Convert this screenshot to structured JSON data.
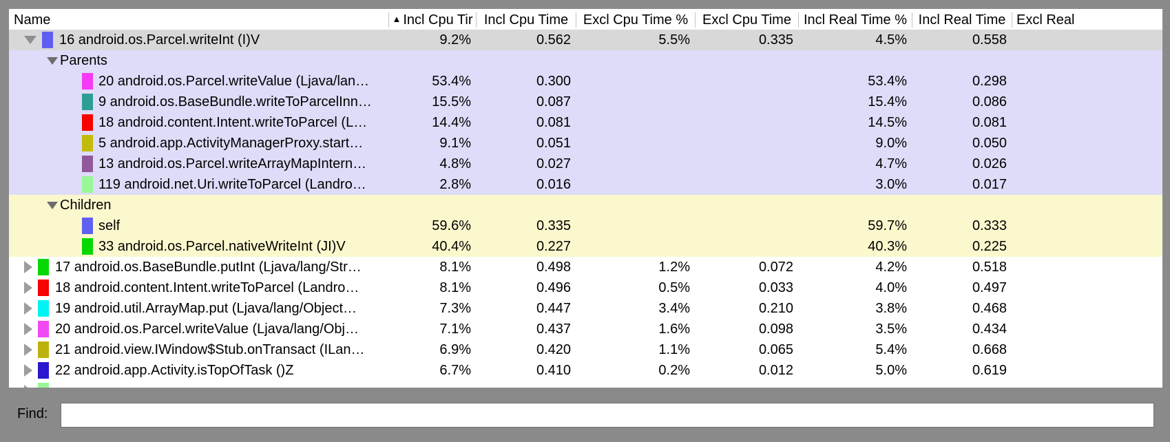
{
  "window": {
    "frame_color": "#8a8a8a"
  },
  "table": {
    "columns": [
      {
        "id": "name",
        "label": "Name",
        "align": "left"
      },
      {
        "id": "incl_cpu_pct",
        "label": "Incl Cpu Tir",
        "sorted": "asc"
      },
      {
        "id": "incl_cpu_time",
        "label": "Incl Cpu Time"
      },
      {
        "id": "excl_cpu_pct",
        "label": "Excl Cpu Time %"
      },
      {
        "id": "excl_cpu_time",
        "label": "Excl Cpu Time"
      },
      {
        "id": "incl_real_pct",
        "label": "Incl Real Time %"
      },
      {
        "id": "incl_real_time",
        "label": "Incl Real Time"
      },
      {
        "id": "excl_real",
        "label": "Excl Real"
      }
    ],
    "rows": [
      {
        "kind": "toplevel",
        "expanded": true,
        "selected": true,
        "chip": "#5e5ef2",
        "label": "16 android.os.Parcel.writeInt (I)V",
        "values": [
          "9.2%",
          "0.562",
          "5.5%",
          "0.335",
          "4.5%",
          "0.558"
        ]
      },
      {
        "kind": "group",
        "section": "parents",
        "label": "Parents",
        "values": [
          "",
          "",
          "",
          "",
          "",
          ""
        ]
      },
      {
        "kind": "sub",
        "section": "parents",
        "chip": "#f63af5",
        "label": "20 android.os.Parcel.writeValue (Ljava/lan…",
        "values": [
          "53.4%",
          "0.300",
          "",
          "",
          "53.4%",
          "0.298"
        ]
      },
      {
        "kind": "sub",
        "section": "parents",
        "chip": "#2d9e93",
        "label": "9 android.os.BaseBundle.writeToParcelInn…",
        "values": [
          "15.5%",
          "0.087",
          "",
          "",
          "15.4%",
          "0.086"
        ]
      },
      {
        "kind": "sub",
        "section": "parents",
        "chip": "#f50400",
        "label": "18 android.content.Intent.writeToParcel (L…",
        "values": [
          "14.4%",
          "0.081",
          "",
          "",
          "14.5%",
          "0.081"
        ]
      },
      {
        "kind": "sub",
        "section": "parents",
        "chip": "#c3bb0a",
        "label": "5 android.app.ActivityManagerProxy.start…",
        "values": [
          "9.1%",
          "0.051",
          "",
          "",
          "9.0%",
          "0.050"
        ]
      },
      {
        "kind": "sub",
        "section": "parents",
        "chip": "#92589b",
        "label": "13 android.os.Parcel.writeArrayMapIntern…",
        "values": [
          "4.8%",
          "0.027",
          "",
          "",
          "4.7%",
          "0.026"
        ]
      },
      {
        "kind": "sub",
        "section": "parents",
        "chip": "#98f898",
        "label": "119 android.net.Uri.writeToParcel (Landro…",
        "values": [
          "2.8%",
          "0.016",
          "",
          "",
          "3.0%",
          "0.017"
        ]
      },
      {
        "kind": "group",
        "section": "children",
        "label": "Children",
        "values": [
          "",
          "",
          "",
          "",
          "",
          ""
        ]
      },
      {
        "kind": "sub",
        "section": "children",
        "chip": "#6060f2",
        "label": "self",
        "values": [
          "59.6%",
          "0.335",
          "",
          "",
          "59.7%",
          "0.333"
        ]
      },
      {
        "kind": "sub",
        "section": "children",
        "chip": "#06d806",
        "label": "33 android.os.Parcel.nativeWriteInt (JI)V",
        "values": [
          "40.4%",
          "0.227",
          "",
          "",
          "40.3%",
          "0.225"
        ]
      },
      {
        "kind": "toplevel",
        "expanded": false,
        "chip": "#06d806",
        "label": "17 android.os.BaseBundle.putInt (Ljava/lang/Str…",
        "values": [
          "8.1%",
          "0.498",
          "1.2%",
          "0.072",
          "4.2%",
          "0.518"
        ]
      },
      {
        "kind": "toplevel",
        "expanded": false,
        "chip": "#f50400",
        "label": "18 android.content.Intent.writeToParcel (Landro…",
        "values": [
          "8.1%",
          "0.496",
          "0.5%",
          "0.033",
          "4.0%",
          "0.497"
        ]
      },
      {
        "kind": "toplevel",
        "expanded": false,
        "chip": "#00f4f4",
        "label": "19 android.util.ArrayMap.put (Ljava/lang/Object…",
        "values": [
          "7.3%",
          "0.447",
          "3.4%",
          "0.210",
          "3.8%",
          "0.468"
        ]
      },
      {
        "kind": "toplevel",
        "expanded": false,
        "chip": "#f24af2",
        "label": "20 android.os.Parcel.writeValue (Ljava/lang/Obj…",
        "values": [
          "7.1%",
          "0.437",
          "1.6%",
          "0.098",
          "3.5%",
          "0.434"
        ]
      },
      {
        "kind": "toplevel",
        "expanded": false,
        "chip": "#bdb20b",
        "label": "21 android.view.IWindow$Stub.onTransact (ILan…",
        "values": [
          "6.9%",
          "0.420",
          "1.1%",
          "0.065",
          "5.4%",
          "0.668"
        ]
      },
      {
        "kind": "toplevel",
        "expanded": false,
        "chip": "#2a17cf",
        "label": "22 android.app.Activity.isTopOfTask ()Z",
        "values": [
          "6.7%",
          "0.410",
          "0.2%",
          "0.012",
          "5.0%",
          "0.619"
        ]
      },
      {
        "kind": "partial",
        "expanded": false,
        "chip": "#98f898",
        "label": "",
        "values": [
          "",
          "",
          "",
          "",
          "",
          ""
        ]
      }
    ]
  },
  "find": {
    "label": "Find:",
    "value": ""
  },
  "colors": {
    "selected_row_bg": "#d8d8d8",
    "parents_section_bg": "#dedcf8",
    "children_section_bg": "#fbf8cd",
    "header_divider": "#c4c4c4",
    "sort_arrow": "#000000"
  }
}
